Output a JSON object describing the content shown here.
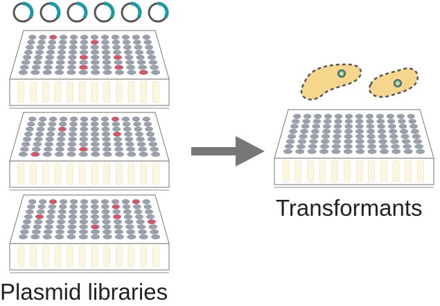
{
  "captions": {
    "left": "Plasmid libraries",
    "right": "Transformants"
  },
  "colors": {
    "ring_base": "#555555",
    "ring_accent": "#1a9ba5",
    "well_gray": "#9aa1ad",
    "well_highlight": "#d9536a",
    "plate_fill": "#ffffff",
    "plate_outline": "#8a8a8a",
    "tube_fill": "#fbf6df",
    "arrow": "#777777",
    "cell_fill": "#f6d58c",
    "cell_outline": "#555555",
    "plasmid_ring": "#1a9ba5"
  },
  "plasmid_rings": {
    "count": 6,
    "accent_fraction": 0.35
  },
  "plates": {
    "rows": 8,
    "cols": 12,
    "library_plates": [
      {
        "name": "plate-1",
        "highlighted_wells": [
          [
            0,
            2
          ],
          [
            1,
            6
          ],
          [
            4,
            5
          ],
          [
            4,
            8
          ],
          [
            6,
            5
          ],
          [
            6,
            8
          ],
          [
            7,
            10
          ]
        ]
      },
      {
        "name": "plate-2",
        "highlighted_wells": [
          [
            0,
            8
          ],
          [
            2,
            3
          ],
          [
            3,
            8
          ],
          [
            6,
            5
          ],
          [
            7,
            1
          ]
        ]
      },
      {
        "name": "plate-3",
        "highlighted_wells": [
          [
            0,
            2
          ],
          [
            0,
            10
          ],
          [
            1,
            8
          ],
          [
            3,
            1
          ],
          [
            3,
            8
          ],
          [
            4,
            11
          ],
          [
            5,
            6
          ]
        ]
      }
    ],
    "transformant_plate": {
      "name": "transformant-plate",
      "highlighted_wells": []
    }
  },
  "cells": {
    "count": 2
  }
}
